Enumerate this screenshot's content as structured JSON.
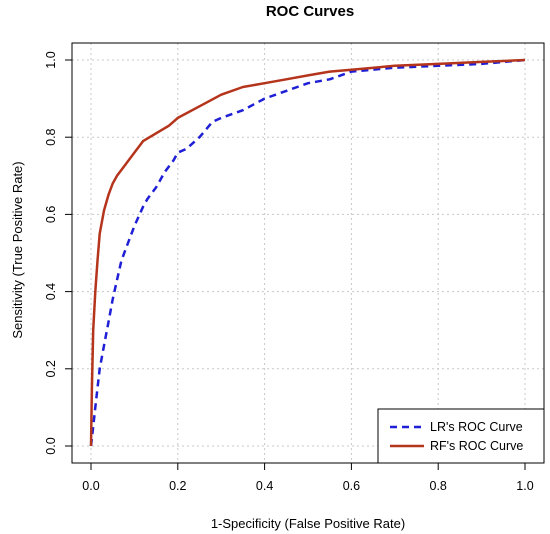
{
  "chart_data": {
    "type": "line",
    "title": "ROC Curves",
    "xlabel": "1-Specificity (False Positive Rate)",
    "ylabel": "Sensitivity (True Positive Rate)",
    "xlim": [
      0,
      1
    ],
    "ylim": [
      0,
      1
    ],
    "x_ticks": [
      "0.0",
      "0.2",
      "0.4",
      "0.6",
      "0.8",
      "1.0"
    ],
    "y_ticks": [
      "0.0",
      "0.2",
      "0.4",
      "0.6",
      "0.8",
      "1.0"
    ],
    "grid": true,
    "legend": {
      "position": "bottom-right",
      "entries": [
        "LR's ROC Curve",
        "RF's ROC Curve"
      ]
    },
    "series": [
      {
        "name": "LR's ROC Curve",
        "color": "#1f1fd6",
        "line_style": "dashed",
        "x": [
          0.0,
          0.005,
          0.01,
          0.015,
          0.02,
          0.03,
          0.04,
          0.05,
          0.06,
          0.07,
          0.08,
          0.1,
          0.12,
          0.13,
          0.15,
          0.17,
          0.19,
          0.2,
          0.22,
          0.25,
          0.28,
          0.3,
          0.35,
          0.4,
          0.45,
          0.5,
          0.55,
          0.6,
          0.7,
          0.8,
          0.9,
          1.0
        ],
        "y": [
          0.0,
          0.05,
          0.1,
          0.15,
          0.2,
          0.26,
          0.32,
          0.38,
          0.43,
          0.48,
          0.51,
          0.57,
          0.62,
          0.64,
          0.67,
          0.71,
          0.74,
          0.76,
          0.77,
          0.8,
          0.84,
          0.85,
          0.87,
          0.9,
          0.92,
          0.94,
          0.95,
          0.97,
          0.98,
          0.985,
          0.99,
          1.0
        ]
      },
      {
        "name": "RF's ROC Curve",
        "color": "#b5341c",
        "line_style": "solid",
        "x": [
          0.0,
          0.002,
          0.005,
          0.01,
          0.015,
          0.02,
          0.03,
          0.04,
          0.05,
          0.06,
          0.08,
          0.1,
          0.12,
          0.15,
          0.18,
          0.2,
          0.25,
          0.3,
          0.35,
          0.4,
          0.45,
          0.5,
          0.55,
          0.6,
          0.7,
          0.8,
          0.9,
          1.0
        ],
        "y": [
          0.0,
          0.15,
          0.3,
          0.4,
          0.48,
          0.55,
          0.61,
          0.65,
          0.68,
          0.7,
          0.73,
          0.76,
          0.79,
          0.81,
          0.83,
          0.85,
          0.88,
          0.91,
          0.93,
          0.94,
          0.95,
          0.96,
          0.97,
          0.975,
          0.985,
          0.99,
          0.995,
          1.0
        ]
      }
    ]
  }
}
